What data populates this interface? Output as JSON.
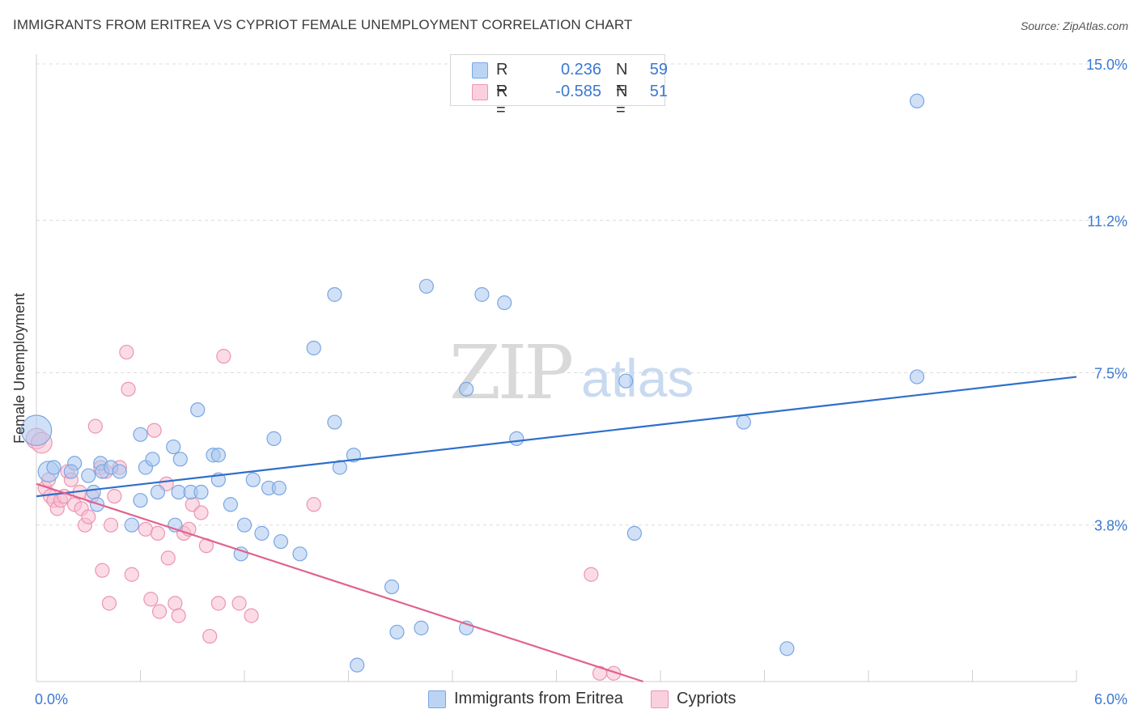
{
  "header": {
    "title": "IMMIGRANTS FROM ERITREA VS CYPRIOT FEMALE UNEMPLOYMENT CORRELATION CHART",
    "source": "Source: ZipAtlas.com"
  },
  "watermark": {
    "zip": "ZIP",
    "atlas": "atlas"
  },
  "legend": {
    "rows": [
      {
        "r_label": "R =",
        "r_value": "0.236",
        "n_label": "N =",
        "n_value": "59",
        "color": "#8db4ec"
      },
      {
        "r_label": "R =",
        "r_value": "-0.585",
        "n_label": "N =",
        "n_value": "51",
        "color": "#f5a9c2"
      }
    ]
  },
  "bottom_legend": {
    "items": [
      {
        "label": "Immigrants from Eritrea",
        "color": "#8db4ec"
      },
      {
        "label": "Cypriots",
        "color": "#f5a9c2"
      }
    ]
  },
  "colors": {
    "blue_fill": "#aac8f0",
    "blue_stroke": "#7aa6e2",
    "blue_line": "#2e6fcc",
    "pink_fill": "#f7bfd1",
    "pink_stroke": "#ec94b2",
    "pink_line": "#e0628f",
    "tick_label": "#3a78d4",
    "grid": "#dcdcdc"
  },
  "chart_data": {
    "type": "scatter",
    "title": "IMMIGRANTS FROM ERITREA VS CYPRIOT FEMALE UNEMPLOYMENT CORRELATION CHART",
    "xlabel": "",
    "ylabel": "Female Unemployment",
    "xlim": [
      0,
      6.0
    ],
    "ylim": [
      0,
      15.0
    ],
    "x_tick_labels": [
      "0.0%",
      "6.0%"
    ],
    "y_ticks": [
      3.8,
      7.5,
      11.2,
      15.0
    ],
    "y_tick_labels": [
      "3.8%",
      "7.5%",
      "11.2%",
      "15.0%"
    ],
    "grid": true,
    "legend_position": "top-center",
    "series": [
      {
        "name": "Immigrants from Eritrea",
        "trendline": {
          "x": [
            0,
            6.0
          ],
          "y": [
            4.5,
            7.4
          ]
        },
        "points": [
          {
            "x": 0.0,
            "y": 6.1,
            "s": 2.2
          },
          {
            "x": 0.07,
            "y": 5.1,
            "s": 1.5
          },
          {
            "x": 0.1,
            "y": 5.2
          },
          {
            "x": 0.22,
            "y": 5.3
          },
          {
            "x": 0.2,
            "y": 5.1
          },
          {
            "x": 0.3,
            "y": 5.0
          },
          {
            "x": 0.33,
            "y": 4.6
          },
          {
            "x": 0.35,
            "y": 4.3
          },
          {
            "x": 0.37,
            "y": 5.3
          },
          {
            "x": 0.38,
            "y": 5.1
          },
          {
            "x": 0.43,
            "y": 5.2
          },
          {
            "x": 0.48,
            "y": 5.1
          },
          {
            "x": 0.55,
            "y": 3.8
          },
          {
            "x": 0.6,
            "y": 4.4
          },
          {
            "x": 0.63,
            "y": 5.2
          },
          {
            "x": 0.7,
            "y": 4.6
          },
          {
            "x": 0.6,
            "y": 6.0
          },
          {
            "x": 0.67,
            "y": 5.4
          },
          {
            "x": 0.79,
            "y": 5.7
          },
          {
            "x": 0.83,
            "y": 5.4
          },
          {
            "x": 0.82,
            "y": 4.6
          },
          {
            "x": 0.8,
            "y": 3.8
          },
          {
            "x": 0.89,
            "y": 4.6
          },
          {
            "x": 0.95,
            "y": 4.6
          },
          {
            "x": 0.93,
            "y": 6.6
          },
          {
            "x": 1.02,
            "y": 5.5
          },
          {
            "x": 1.05,
            "y": 5.5
          },
          {
            "x": 1.05,
            "y": 4.9
          },
          {
            "x": 1.12,
            "y": 4.3
          },
          {
            "x": 1.18,
            "y": 3.1
          },
          {
            "x": 1.2,
            "y": 3.8
          },
          {
            "x": 1.25,
            "y": 4.9
          },
          {
            "x": 1.3,
            "y": 3.6
          },
          {
            "x": 1.34,
            "y": 4.7
          },
          {
            "x": 1.4,
            "y": 4.7
          },
          {
            "x": 1.37,
            "y": 5.9
          },
          {
            "x": 1.41,
            "y": 3.4
          },
          {
            "x": 1.52,
            "y": 3.1
          },
          {
            "x": 1.6,
            "y": 8.1
          },
          {
            "x": 1.72,
            "y": 9.4
          },
          {
            "x": 1.72,
            "y": 6.3
          },
          {
            "x": 1.75,
            "y": 5.2
          },
          {
            "x": 1.83,
            "y": 5.5
          },
          {
            "x": 1.85,
            "y": 0.4
          },
          {
            "x": 2.05,
            "y": 2.3
          },
          {
            "x": 2.08,
            "y": 1.2
          },
          {
            "x": 2.22,
            "y": 1.3
          },
          {
            "x": 2.25,
            "y": 9.6
          },
          {
            "x": 2.57,
            "y": 9.4
          },
          {
            "x": 2.48,
            "y": 1.3
          },
          {
            "x": 2.48,
            "y": 7.1
          },
          {
            "x": 2.7,
            "y": 9.2
          },
          {
            "x": 2.77,
            "y": 5.9
          },
          {
            "x": 3.4,
            "y": 7.3
          },
          {
            "x": 3.45,
            "y": 3.6
          },
          {
            "x": 4.08,
            "y": 6.3
          },
          {
            "x": 4.33,
            "y": 0.8
          },
          {
            "x": 5.08,
            "y": 7.4
          },
          {
            "x": 5.08,
            "y": 14.1
          }
        ]
      },
      {
        "name": "Cypriots",
        "trendline": {
          "x": [
            0,
            3.5
          ],
          "y": [
            4.8,
            0
          ]
        },
        "points": [
          {
            "x": 0.0,
            "y": 5.9,
            "s": 1.5
          },
          {
            "x": 0.03,
            "y": 5.8,
            "s": 1.5
          },
          {
            "x": 0.05,
            "y": 4.7
          },
          {
            "x": 0.07,
            "y": 4.9
          },
          {
            "x": 0.08,
            "y": 4.5
          },
          {
            "x": 0.1,
            "y": 4.4
          },
          {
            "x": 0.12,
            "y": 4.2
          },
          {
            "x": 0.14,
            "y": 4.4
          },
          {
            "x": 0.16,
            "y": 4.5
          },
          {
            "x": 0.18,
            "y": 5.1
          },
          {
            "x": 0.2,
            "y": 4.9
          },
          {
            "x": 0.22,
            "y": 4.3
          },
          {
            "x": 0.25,
            "y": 4.6
          },
          {
            "x": 0.26,
            "y": 4.2
          },
          {
            "x": 0.28,
            "y": 3.8
          },
          {
            "x": 0.3,
            "y": 4.0
          },
          {
            "x": 0.32,
            "y": 4.5
          },
          {
            "x": 0.34,
            "y": 6.2
          },
          {
            "x": 0.37,
            "y": 5.2
          },
          {
            "x": 0.38,
            "y": 2.7
          },
          {
            "x": 0.4,
            "y": 5.1
          },
          {
            "x": 0.42,
            "y": 1.9
          },
          {
            "x": 0.43,
            "y": 3.8
          },
          {
            "x": 0.45,
            "y": 4.5
          },
          {
            "x": 0.48,
            "y": 5.2
          },
          {
            "x": 0.52,
            "y": 8.0
          },
          {
            "x": 0.53,
            "y": 7.1
          },
          {
            "x": 0.55,
            "y": 2.6
          },
          {
            "x": 0.63,
            "y": 3.7
          },
          {
            "x": 0.66,
            "y": 2.0
          },
          {
            "x": 0.68,
            "y": 6.1
          },
          {
            "x": 0.7,
            "y": 3.6
          },
          {
            "x": 0.71,
            "y": 1.7
          },
          {
            "x": 0.75,
            "y": 4.8
          },
          {
            "x": 0.76,
            "y": 3.0
          },
          {
            "x": 0.8,
            "y": 1.9
          },
          {
            "x": 0.82,
            "y": 1.6
          },
          {
            "x": 0.85,
            "y": 3.6
          },
          {
            "x": 0.88,
            "y": 3.7
          },
          {
            "x": 0.9,
            "y": 4.3
          },
          {
            "x": 0.95,
            "y": 4.1
          },
          {
            "x": 0.98,
            "y": 3.3
          },
          {
            "x": 1.0,
            "y": 1.1
          },
          {
            "x": 1.05,
            "y": 1.9
          },
          {
            "x": 1.08,
            "y": 7.9
          },
          {
            "x": 1.17,
            "y": 1.9
          },
          {
            "x": 1.24,
            "y": 1.6
          },
          {
            "x": 1.6,
            "y": 4.3
          },
          {
            "x": 3.2,
            "y": 2.6
          },
          {
            "x": 3.25,
            "y": 0.2
          },
          {
            "x": 3.33,
            "y": 0.2
          }
        ]
      }
    ]
  }
}
